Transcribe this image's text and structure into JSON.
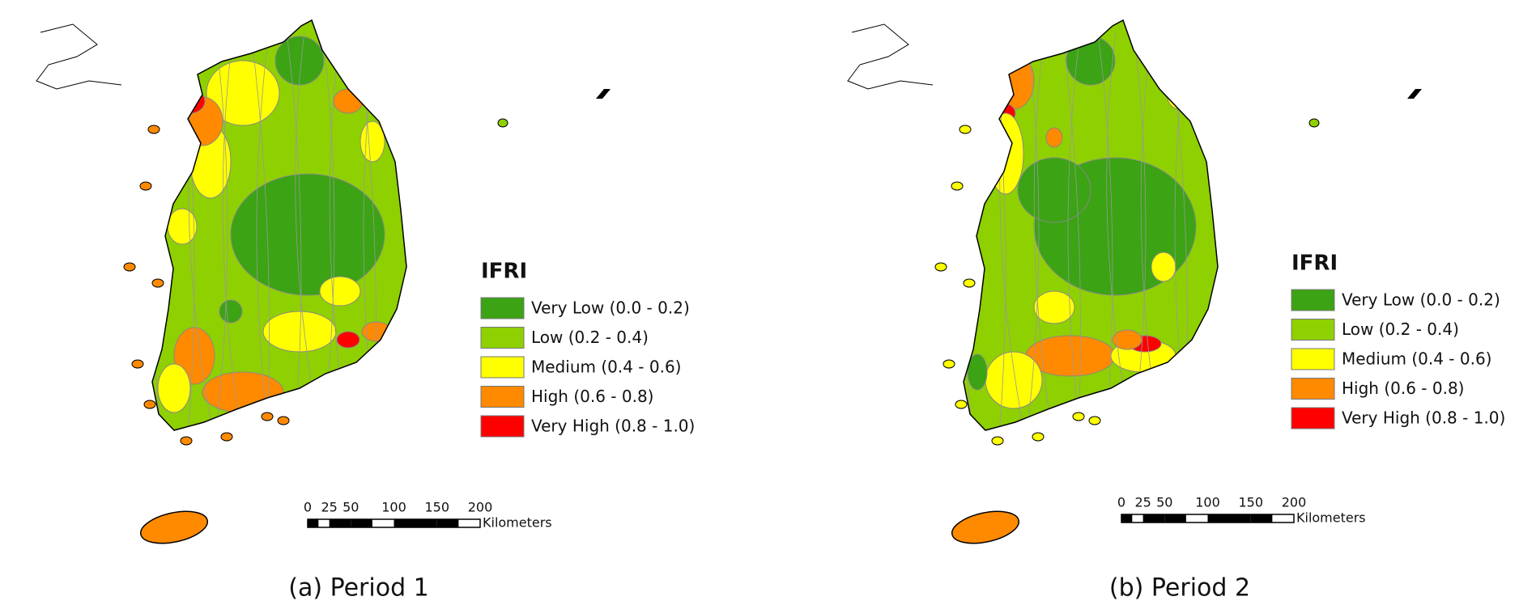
{
  "panels": [
    {
      "caption": "(a) Period 1",
      "legend": {
        "title": "IFRI",
        "items": [
          {
            "label": "Very Low (0.0 - 0.2)",
            "color": "#3ba314"
          },
          {
            "label": "Low (0.2 - 0.4)",
            "color": "#8fd000"
          },
          {
            "label": "Medium (0.4 - 0.6)",
            "color": "#ffff00"
          },
          {
            "label": "High (0.6 - 0.8)",
            "color": "#ff8a00"
          },
          {
            "label": "Very High (0.8 - 1.0)",
            "color": "#ff0000"
          }
        ]
      },
      "scale_bar": {
        "ticks": [
          0,
          25,
          50,
          100,
          150,
          200
        ],
        "unit": "Kilometers"
      }
    },
    {
      "caption": "(b) Period 2",
      "legend": {
        "title": "IFRI",
        "items": [
          {
            "label": "Very Low (0.0 - 0.2)",
            "color": "#3ba314"
          },
          {
            "label": "Low (0.2 - 0.4)",
            "color": "#8fd000"
          },
          {
            "label": "Medium (0.4 - 0.6)",
            "color": "#ffff00"
          },
          {
            "label": "High (0.6 - 0.8)",
            "color": "#ff8a00"
          },
          {
            "label": "Very High (0.8 - 1.0)",
            "color": "#ff0000"
          }
        ]
      },
      "scale_bar": {
        "ticks": [
          0,
          25,
          50,
          100,
          150,
          200
        ],
        "unit": "Kilometers"
      }
    }
  ]
}
